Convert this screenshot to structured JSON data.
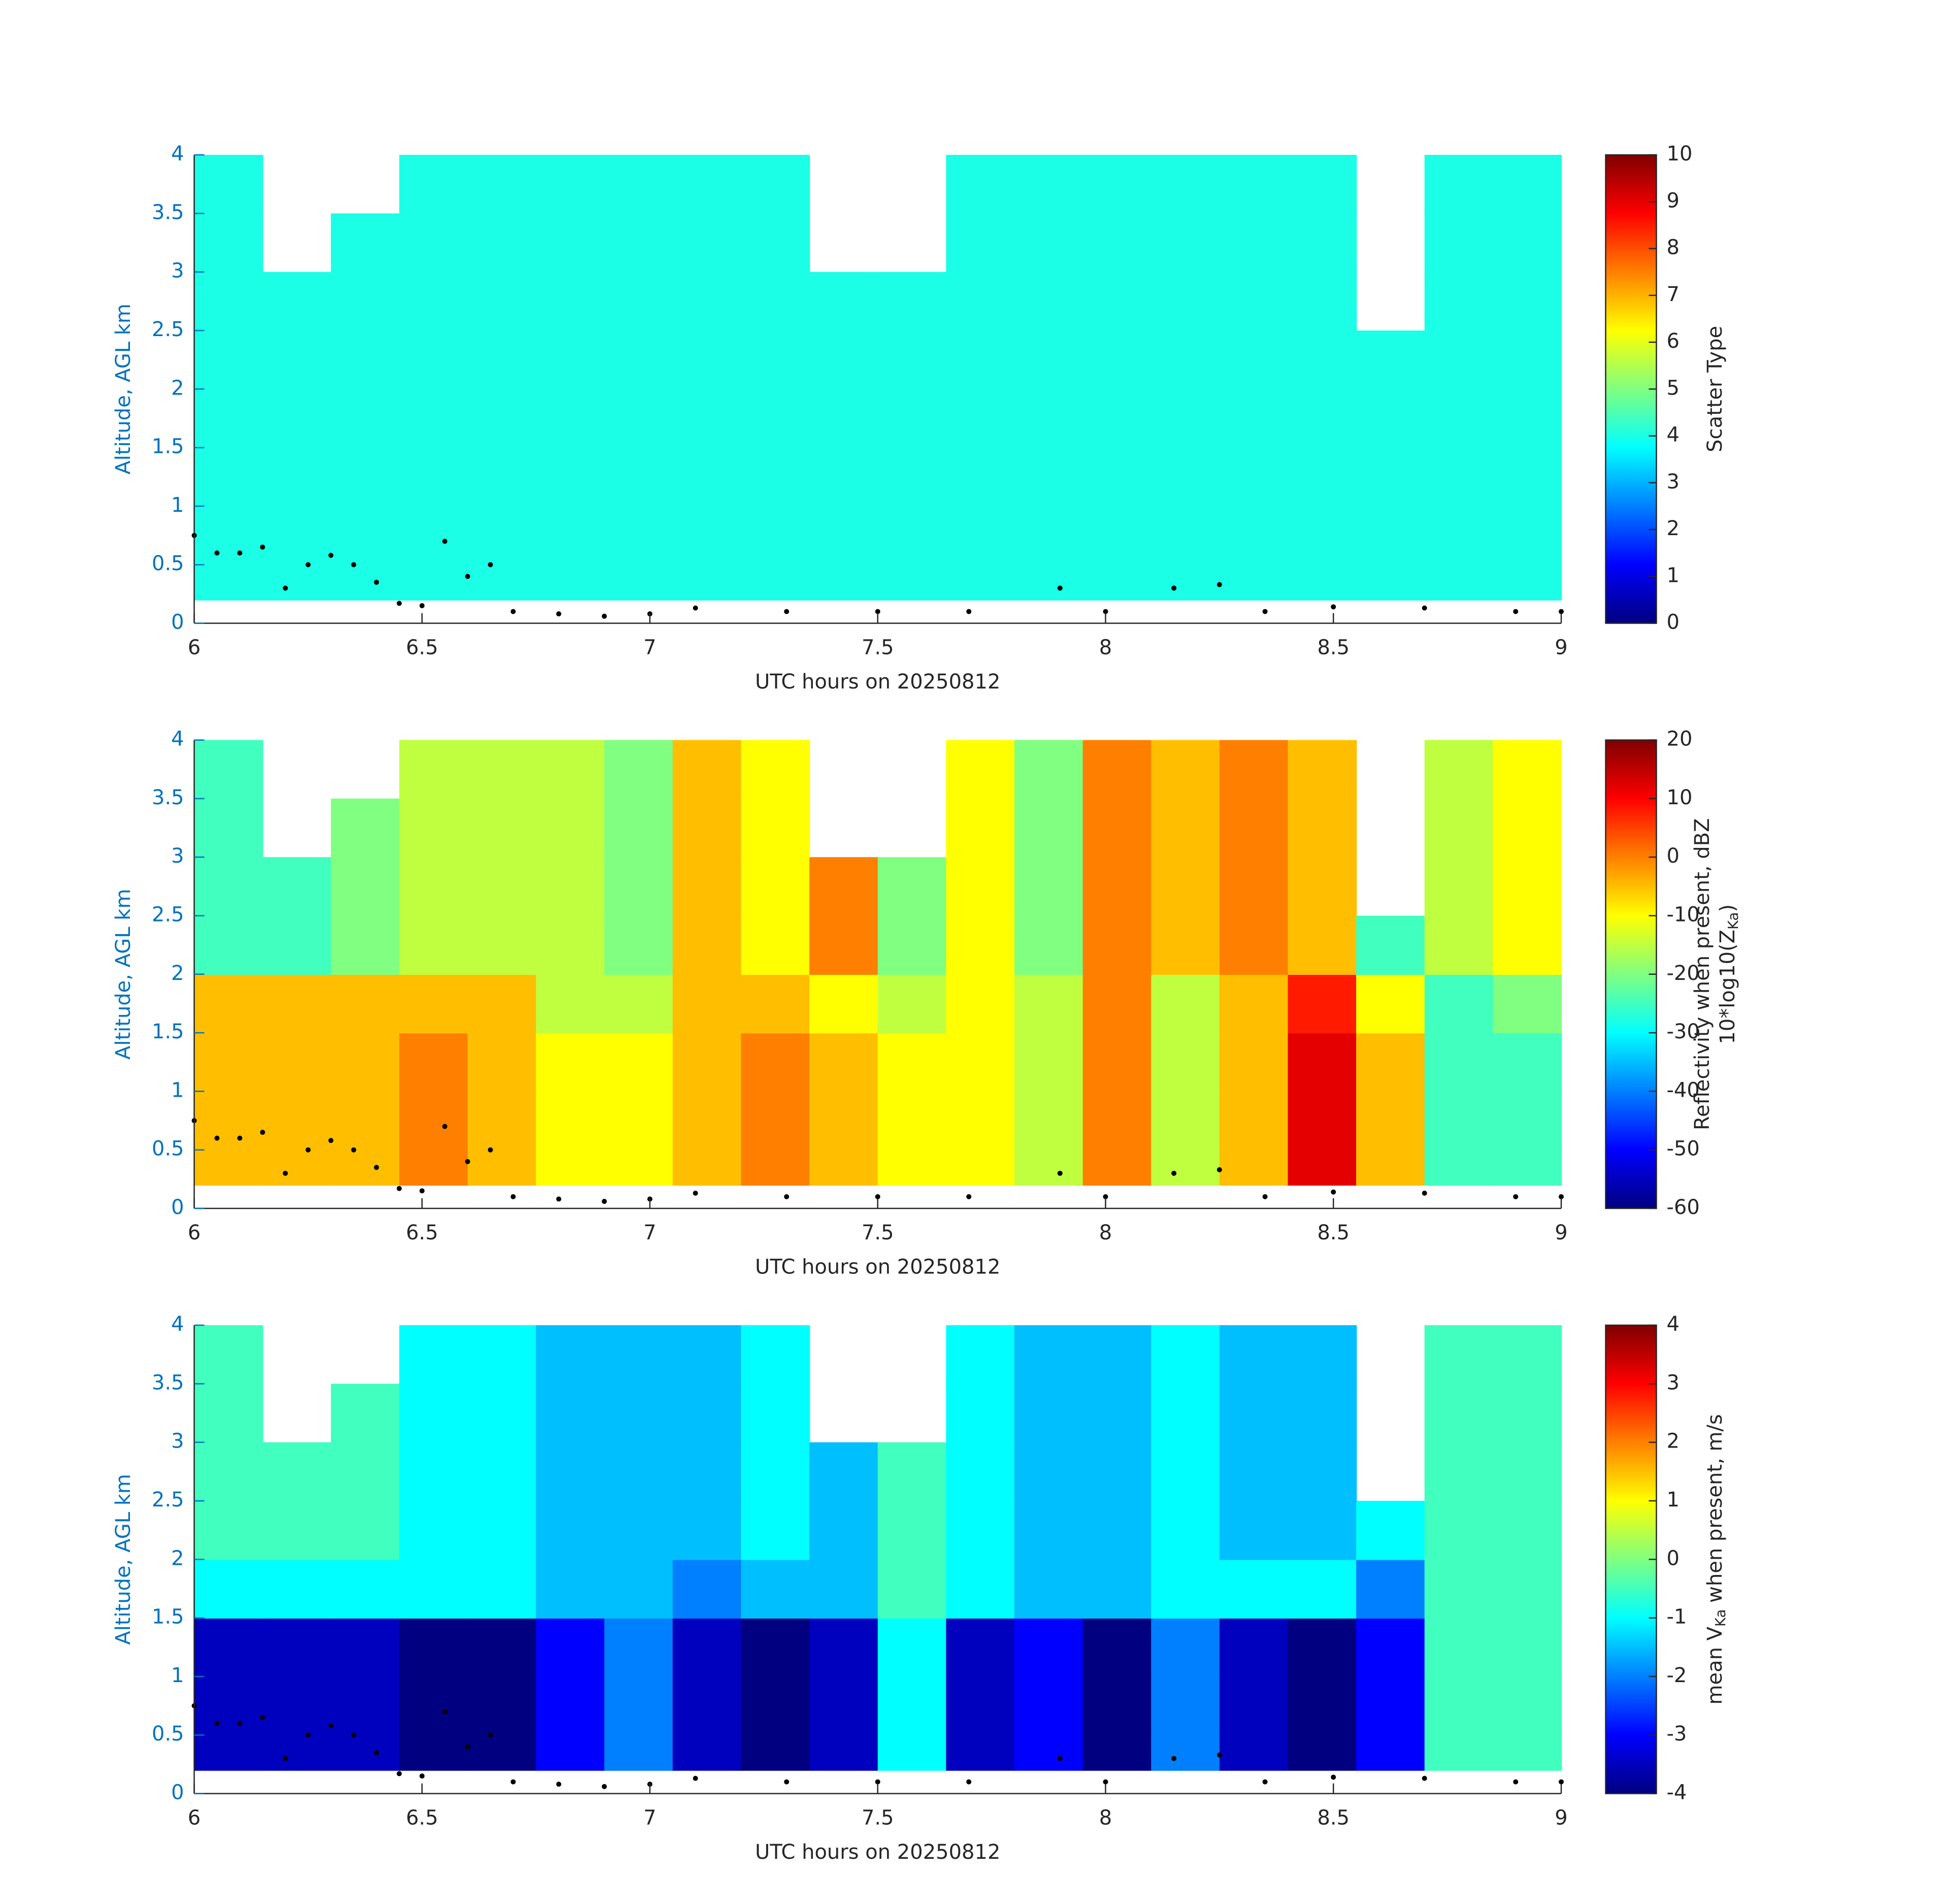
{
  "markers": {
    "x": [
      6.0,
      6.05,
      6.1,
      6.15,
      6.2,
      6.25,
      6.3,
      6.35,
      6.4,
      6.45,
      6.5,
      6.55,
      6.6,
      6.65,
      6.7,
      6.8,
      6.9,
      7.0,
      7.1,
      7.3,
      7.5,
      7.7,
      7.9,
      8.0,
      8.15,
      8.25,
      8.35,
      8.5,
      8.7,
      8.9,
      9.0
    ],
    "y": [
      0.75,
      0.6,
      0.6,
      0.65,
      0.3,
      0.5,
      0.58,
      0.5,
      0.35,
      0.17,
      0.15,
      0.7,
      0.4,
      0.5,
      0.1,
      0.08,
      0.06,
      0.08,
      0.13,
      0.1,
      0.1,
      0.1,
      0.3,
      0.1,
      0.3,
      0.33,
      0.1,
      0.14,
      0.13,
      0.1,
      0.1
    ]
  },
  "chart_data": [
    {
      "type": "heatmap",
      "xlabel": "UTC hours on 20250812",
      "ylabel": "Altitude, AGL km",
      "xlim": [
        6,
        9
      ],
      "ylim": [
        0,
        4
      ],
      "xticks": [
        6,
        6.5,
        7,
        7.5,
        8,
        8.5,
        9
      ],
      "yticks": [
        0,
        0.5,
        1,
        1.5,
        2,
        2.5,
        3,
        3.5,
        4
      ],
      "colormap": "jet",
      "clim": [
        0,
        10
      ],
      "cticks": [
        0,
        1,
        2,
        3,
        4,
        5,
        6,
        7,
        8,
        9,
        10
      ],
      "colorbar_label": [
        [
          {
            "t": "Scatter Type",
            "sub": false
          }
        ]
      ],
      "x_edges": [
        6,
        6.15,
        6.3,
        6.45,
        6.6,
        6.75,
        6.9,
        7.05,
        7.2,
        7.35,
        7.5,
        7.65,
        7.8,
        7.95,
        8.1,
        8.25,
        8.4,
        8.55,
        8.7,
        8.85,
        9
      ],
      "y_edges": [
        0.2,
        0.5,
        1.0,
        1.5,
        2.0,
        2.5,
        3.0,
        3.5,
        4.0
      ],
      "values": [
        [
          4,
          4,
          4,
          4,
          4,
          4,
          4,
          4,
          4,
          4,
          4,
          4,
          4,
          4,
          4,
          4,
          4,
          4,
          4,
          4
        ],
        [
          4,
          4,
          4,
          4,
          4,
          4,
          4,
          4,
          4,
          4,
          4,
          4,
          4,
          4,
          4,
          4,
          4,
          4,
          4,
          4
        ],
        [
          4,
          4,
          4,
          4,
          4,
          4,
          4,
          4,
          4,
          4,
          4,
          4,
          4,
          4,
          4,
          4,
          4,
          4,
          4,
          4
        ],
        [
          4,
          4,
          4,
          4,
          4,
          4,
          4,
          4,
          4,
          4,
          4,
          4,
          4,
          4,
          4,
          4,
          4,
          4,
          4,
          4
        ],
        [
          4,
          4,
          4,
          4,
          4,
          4,
          4,
          4,
          4,
          4,
          4,
          4,
          4,
          4,
          4,
          4,
          4,
          4,
          4,
          4
        ],
        [
          4,
          4,
          4,
          4,
          4,
          4,
          4,
          4,
          4,
          4,
          4,
          4,
          4,
          4,
          4,
          4,
          4,
          null,
          4,
          4
        ],
        [
          4,
          null,
          4,
          4,
          4,
          4,
          4,
          4,
          4,
          null,
          null,
          4,
          4,
          4,
          4,
          4,
          4,
          null,
          4,
          4
        ],
        [
          4,
          null,
          null,
          4,
          4,
          4,
          4,
          4,
          4,
          null,
          null,
          4,
          4,
          4,
          4,
          4,
          4,
          null,
          4,
          4
        ]
      ]
    },
    {
      "type": "heatmap",
      "xlabel": "UTC hours on 20250812",
      "ylabel": "Altitude, AGL km",
      "xlim": [
        6,
        9
      ],
      "ylim": [
        0,
        4
      ],
      "xticks": [
        6,
        6.5,
        7,
        7.5,
        8,
        8.5,
        9
      ],
      "yticks": [
        0,
        0.5,
        1,
        1.5,
        2,
        2.5,
        3,
        3.5,
        4
      ],
      "colormap": "jet",
      "clim": [
        -60,
        20
      ],
      "cticks": [
        -60,
        -50,
        -40,
        -30,
        -20,
        -10,
        0,
        10,
        20
      ],
      "colorbar_label": [
        [
          {
            "t": "Reflectivity when present, dBZ",
            "sub": false
          }
        ],
        [
          {
            "t": "10*log10(Z",
            "sub": false
          },
          {
            "t": "Ka",
            "sub": true
          },
          {
            "t": ")",
            "sub": false
          }
        ]
      ],
      "x_edges": [
        6,
        6.15,
        6.3,
        6.45,
        6.6,
        6.75,
        6.9,
        7.05,
        7.2,
        7.35,
        7.5,
        7.65,
        7.8,
        7.95,
        8.1,
        8.25,
        8.4,
        8.55,
        8.7,
        8.85,
        9
      ],
      "y_edges": [
        0.2,
        0.5,
        1.0,
        1.5,
        2.0,
        2.5,
        3.0,
        3.5,
        4.0
      ],
      "values": [
        [
          -5,
          -5,
          -5,
          0,
          -5,
          -10,
          -10,
          -5,
          0,
          -5,
          -10,
          -10,
          -15,
          0,
          -15,
          -5,
          12,
          -5,
          -25,
          -25
        ],
        [
          -5,
          -5,
          -5,
          0,
          -5,
          -10,
          -10,
          -5,
          0,
          -5,
          -10,
          -10,
          -15,
          0,
          -15,
          -5,
          12,
          -5,
          -25,
          -25
        ],
        [
          -5,
          -5,
          -5,
          0,
          -5,
          -10,
          -10,
          -5,
          0,
          -5,
          -10,
          -10,
          -15,
          0,
          -15,
          -5,
          12,
          -5,
          -25,
          -25
        ],
        [
          -5,
          -5,
          -5,
          -5,
          -5,
          -15,
          -15,
          -5,
          -5,
          -10,
          -15,
          -10,
          -15,
          0,
          -15,
          -5,
          8,
          -10,
          -25,
          -20
        ],
        [
          -25,
          -25,
          -20,
          -15,
          -15,
          -15,
          -20,
          -5,
          -10,
          0,
          -20,
          -10,
          -20,
          0,
          -5,
          0,
          -5,
          -25,
          -15,
          -10
        ],
        [
          -25,
          -25,
          -20,
          -15,
          -15,
          -15,
          -20,
          -5,
          -10,
          0,
          -20,
          -10,
          -20,
          0,
          -5,
          0,
          -5,
          null,
          -15,
          -10
        ],
        [
          -25,
          null,
          -20,
          -15,
          -15,
          -15,
          -20,
          -5,
          -10,
          null,
          null,
          -10,
          -20,
          0,
          -5,
          0,
          -5,
          null,
          -15,
          -10
        ],
        [
          -25,
          null,
          null,
          -15,
          -15,
          -15,
          -20,
          -5,
          -10,
          null,
          null,
          -10,
          -20,
          0,
          -5,
          0,
          -5,
          null,
          -15,
          -10
        ]
      ]
    },
    {
      "type": "heatmap",
      "xlabel": "UTC hours on 20250812",
      "ylabel": "Altitude, AGL km",
      "xlim": [
        6,
        9
      ],
      "ylim": [
        0,
        4
      ],
      "xticks": [
        6,
        6.5,
        7,
        7.5,
        8,
        8.5,
        9
      ],
      "yticks": [
        0,
        0.5,
        1,
        1.5,
        2,
        2.5,
        3,
        3.5,
        4
      ],
      "colormap": "jet",
      "clim": [
        -4,
        4
      ],
      "cticks": [
        -4,
        -3,
        -2,
        -1,
        0,
        1,
        2,
        3,
        4
      ],
      "colorbar_label": [
        [
          {
            "t": "mean V",
            "sub": false
          },
          {
            "t": "Ka",
            "sub": true
          },
          {
            "t": " when present, m/s",
            "sub": false
          }
        ]
      ],
      "x_edges": [
        6,
        6.15,
        6.3,
        6.45,
        6.6,
        6.75,
        6.9,
        7.05,
        7.2,
        7.35,
        7.5,
        7.65,
        7.8,
        7.95,
        8.1,
        8.25,
        8.4,
        8.55,
        8.7,
        8.85,
        9
      ],
      "y_edges": [
        0.2,
        0.5,
        1.0,
        1.5,
        2.0,
        2.5,
        3.0,
        3.5,
        4.0
      ],
      "values": [
        [
          -3.5,
          -3.5,
          -3.5,
          -4,
          -4,
          -3,
          -2,
          -3.5,
          -4,
          -3.5,
          -1,
          -3.5,
          -3,
          -4,
          -2,
          -3.5,
          -4,
          -3,
          -0.5,
          -0.5
        ],
        [
          -3.5,
          -3.5,
          -3.5,
          -4,
          -4,
          -3,
          -2,
          -3.5,
          -4,
          -3.5,
          -1,
          -3.5,
          -3,
          -4,
          -2,
          -3.5,
          -4,
          -3,
          -0.5,
          -0.5
        ],
        [
          -3.5,
          -3.5,
          -3.5,
          -4,
          -4,
          -3,
          -2,
          -3.5,
          -4,
          -3.5,
          -1,
          -3.5,
          -3,
          -4,
          -2,
          -3.5,
          -4,
          -3,
          -0.5,
          -0.5
        ],
        [
          -1,
          -1,
          -1,
          -1,
          -1,
          -1.5,
          -1.5,
          -2,
          -1.5,
          -1.5,
          -0.5,
          -1,
          -1.5,
          -1.5,
          -1,
          -1,
          -1,
          -2,
          -0.5,
          -0.5
        ],
        [
          -0.5,
          -0.5,
          -0.5,
          -1,
          -1,
          -1.5,
          -1.5,
          -1.5,
          -1,
          -1.5,
          -0.5,
          -1,
          -1.5,
          -1.5,
          -1,
          -1.5,
          -1.5,
          -1,
          -0.5,
          -0.5
        ],
        [
          -0.5,
          -0.5,
          -0.5,
          -1,
          -1,
          -1.5,
          -1.5,
          -1.5,
          -1,
          -1.5,
          -0.5,
          -1,
          -1.5,
          -1.5,
          -1,
          -1.5,
          -1.5,
          null,
          -0.5,
          -0.5
        ],
        [
          -0.5,
          null,
          -0.5,
          -1,
          -1,
          -1.5,
          -1.5,
          -1.5,
          -1,
          null,
          null,
          -1,
          -1.5,
          -1.5,
          -1,
          -1.5,
          -1.5,
          null,
          -0.5,
          -0.5
        ],
        [
          -0.5,
          null,
          null,
          -1,
          -1,
          -1.5,
          -1.5,
          -1.5,
          -1,
          null,
          null,
          -1,
          -1.5,
          -1.5,
          -1,
          -1.5,
          -1.5,
          null,
          -0.5,
          -0.5
        ]
      ]
    }
  ]
}
